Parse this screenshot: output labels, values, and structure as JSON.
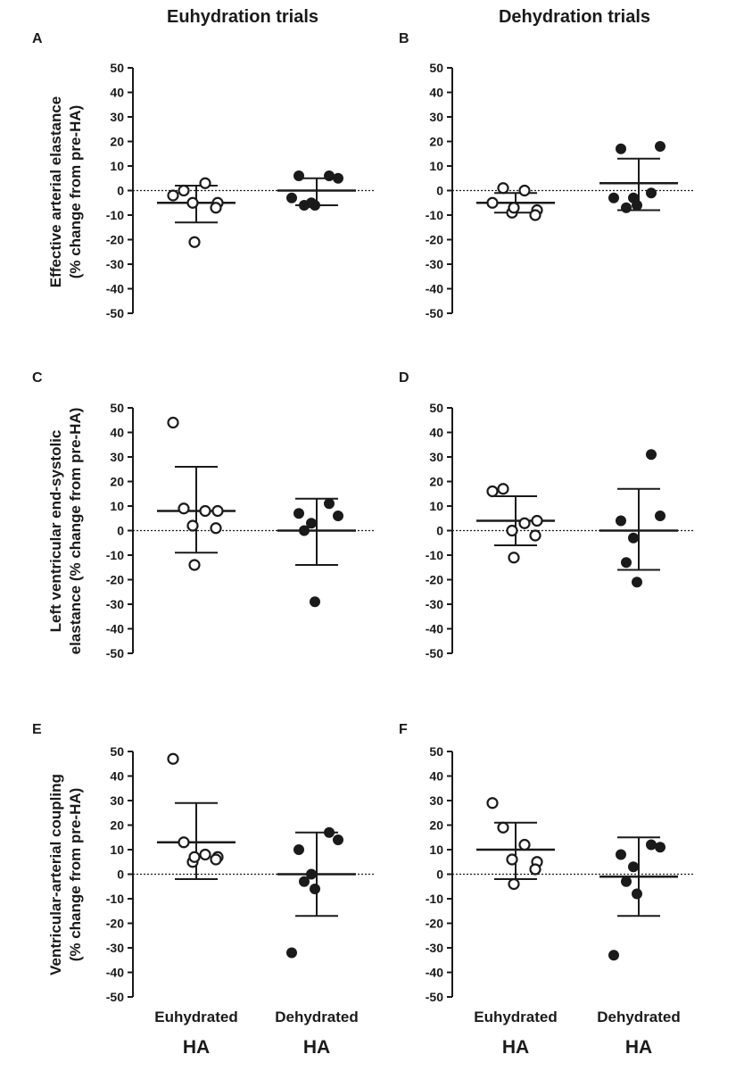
{
  "headers": {
    "left": "Euhydration trials",
    "right": "Dehydration trials"
  },
  "y_labels": {
    "row1": [
      "Effective arterial elastance",
      "(% change from pre-HA)"
    ],
    "row2": [
      "Left ventricular end-systolic",
      "elastance (% change from pre-HA)"
    ],
    "row3": [
      "Ventricular-arterial coupling",
      "(% change from pre-HA)"
    ]
  },
  "x_labels": {
    "categories": [
      "Euhydrated",
      "Dehydrated"
    ],
    "sublabel": "HA"
  },
  "colors": {
    "ink": "#1a1a1a",
    "open_fill": "#ffffff",
    "filled": "#1a1a1a"
  },
  "chart_data": [
    {
      "type": "scatter",
      "panel": "A",
      "column": "Euhydration trials",
      "row": 1,
      "ylim": [
        -50,
        50
      ],
      "yticks": [
        50,
        40,
        30,
        20,
        10,
        0,
        -10,
        -20,
        -30,
        -40,
        -50
      ],
      "ylabel": "Effective arterial elastance (% change from pre-HA)",
      "reference_line": 0,
      "series": [
        {
          "name": "Euhydrated HA",
          "marker": "open",
          "points": [
            -2,
            0,
            3,
            -5,
            -5,
            -7,
            -21
          ],
          "mean": -5,
          "sd_upper": 2,
          "sd_lower": -13
        },
        {
          "name": "Dehydrated HA",
          "marker": "filled",
          "points": [
            6,
            5,
            6,
            -5,
            -6,
            -6,
            -3
          ],
          "mean": 0,
          "sd_upper": 5,
          "sd_lower": -6
        }
      ]
    },
    {
      "type": "scatter",
      "panel": "B",
      "column": "Dehydration trials",
      "row": 1,
      "ylim": [
        -50,
        50
      ],
      "yticks": [
        50,
        40,
        30,
        20,
        10,
        0,
        -10,
        -20,
        -30,
        -40,
        -50
      ],
      "ylabel": "Effective arterial elastance (% change from pre-HA)",
      "reference_line": 0,
      "series": [
        {
          "name": "Euhydrated HA",
          "marker": "open",
          "points": [
            -5,
            1,
            0,
            -8,
            -9,
            -10,
            -7
          ],
          "mean": -5,
          "sd_upper": -1,
          "sd_lower": -9
        },
        {
          "name": "Dehydrated HA",
          "marker": "filled",
          "points": [
            -1,
            18,
            17,
            -3,
            -7,
            -6,
            -3
          ],
          "mean": 3,
          "sd_upper": 13,
          "sd_lower": -8
        }
      ]
    },
    {
      "type": "scatter",
      "panel": "C",
      "column": "Euhydration trials",
      "row": 2,
      "ylim": [
        -50,
        50
      ],
      "yticks": [
        50,
        40,
        30,
        20,
        10,
        0,
        -10,
        -20,
        -30,
        -40,
        -50
      ],
      "ylabel": "Left ventricular end-systolic elastance (% change from pre-HA)",
      "reference_line": 0,
      "series": [
        {
          "name": "Euhydrated HA",
          "marker": "open",
          "points": [
            44,
            9,
            8,
            8,
            2,
            1,
            -14
          ],
          "mean": 8,
          "sd_upper": 26,
          "sd_lower": -9
        },
        {
          "name": "Dehydrated HA",
          "marker": "filled",
          "points": [
            11,
            6,
            7,
            3,
            0,
            -29
          ],
          "mean": 0,
          "sd_upper": 13,
          "sd_lower": -14
        }
      ]
    },
    {
      "type": "scatter",
      "panel": "D",
      "column": "Dehydration trials",
      "row": 2,
      "ylim": [
        -50,
        50
      ],
      "yticks": [
        50,
        40,
        30,
        20,
        10,
        0,
        -10,
        -20,
        -30,
        -40,
        -50
      ],
      "ylabel": "Left ventricular end-systolic elastance (% change from pre-HA)",
      "reference_line": 0,
      "series": [
        {
          "name": "Euhydrated HA",
          "marker": "open",
          "points": [
            16,
            17,
            3,
            4,
            0,
            -2,
            -11
          ],
          "mean": 4,
          "sd_upper": 14,
          "sd_lower": -6
        },
        {
          "name": "Dehydrated HA",
          "marker": "filled",
          "points": [
            31,
            6,
            4,
            -3,
            -13,
            -21
          ],
          "mean": 0,
          "sd_upper": 17,
          "sd_lower": -16
        }
      ]
    },
    {
      "type": "scatter",
      "panel": "E",
      "column": "Euhydration trials",
      "row": 3,
      "ylim": [
        -50,
        50
      ],
      "yticks": [
        50,
        40,
        30,
        20,
        10,
        0,
        -10,
        -20,
        -30,
        -40,
        -50
      ],
      "ylabel": "Ventricular-arterial coupling (% change from pre-HA)",
      "reference_line": 0,
      "series": [
        {
          "name": "Euhydrated HA",
          "marker": "open",
          "points": [
            47,
            13,
            8,
            7,
            5,
            6,
            7
          ],
          "mean": 13,
          "sd_upper": 29,
          "sd_lower": -2
        },
        {
          "name": "Dehydrated HA",
          "marker": "filled",
          "points": [
            17,
            14,
            10,
            0,
            -3,
            -6,
            -32
          ],
          "mean": 0,
          "sd_upper": 17,
          "sd_lower": -17
        }
      ]
    },
    {
      "type": "scatter",
      "panel": "F",
      "column": "Dehydration trials",
      "row": 3,
      "ylim": [
        -50,
        50
      ],
      "yticks": [
        50,
        40,
        30,
        20,
        10,
        0,
        -10,
        -20,
        -30,
        -40,
        -50
      ],
      "ylabel": "Ventricular-arterial coupling (% change from pre-HA)",
      "reference_line": 0,
      "series": [
        {
          "name": "Euhydrated HA",
          "marker": "open",
          "points": [
            29,
            19,
            12,
            5,
            6,
            2,
            -4
          ],
          "mean": 10,
          "sd_upper": 21,
          "sd_lower": -2
        },
        {
          "name": "Dehydrated HA",
          "marker": "filled",
          "points": [
            12,
            11,
            8,
            3,
            -3,
            -8,
            -33
          ],
          "mean": -1,
          "sd_upper": 15,
          "sd_lower": -17
        }
      ]
    }
  ]
}
